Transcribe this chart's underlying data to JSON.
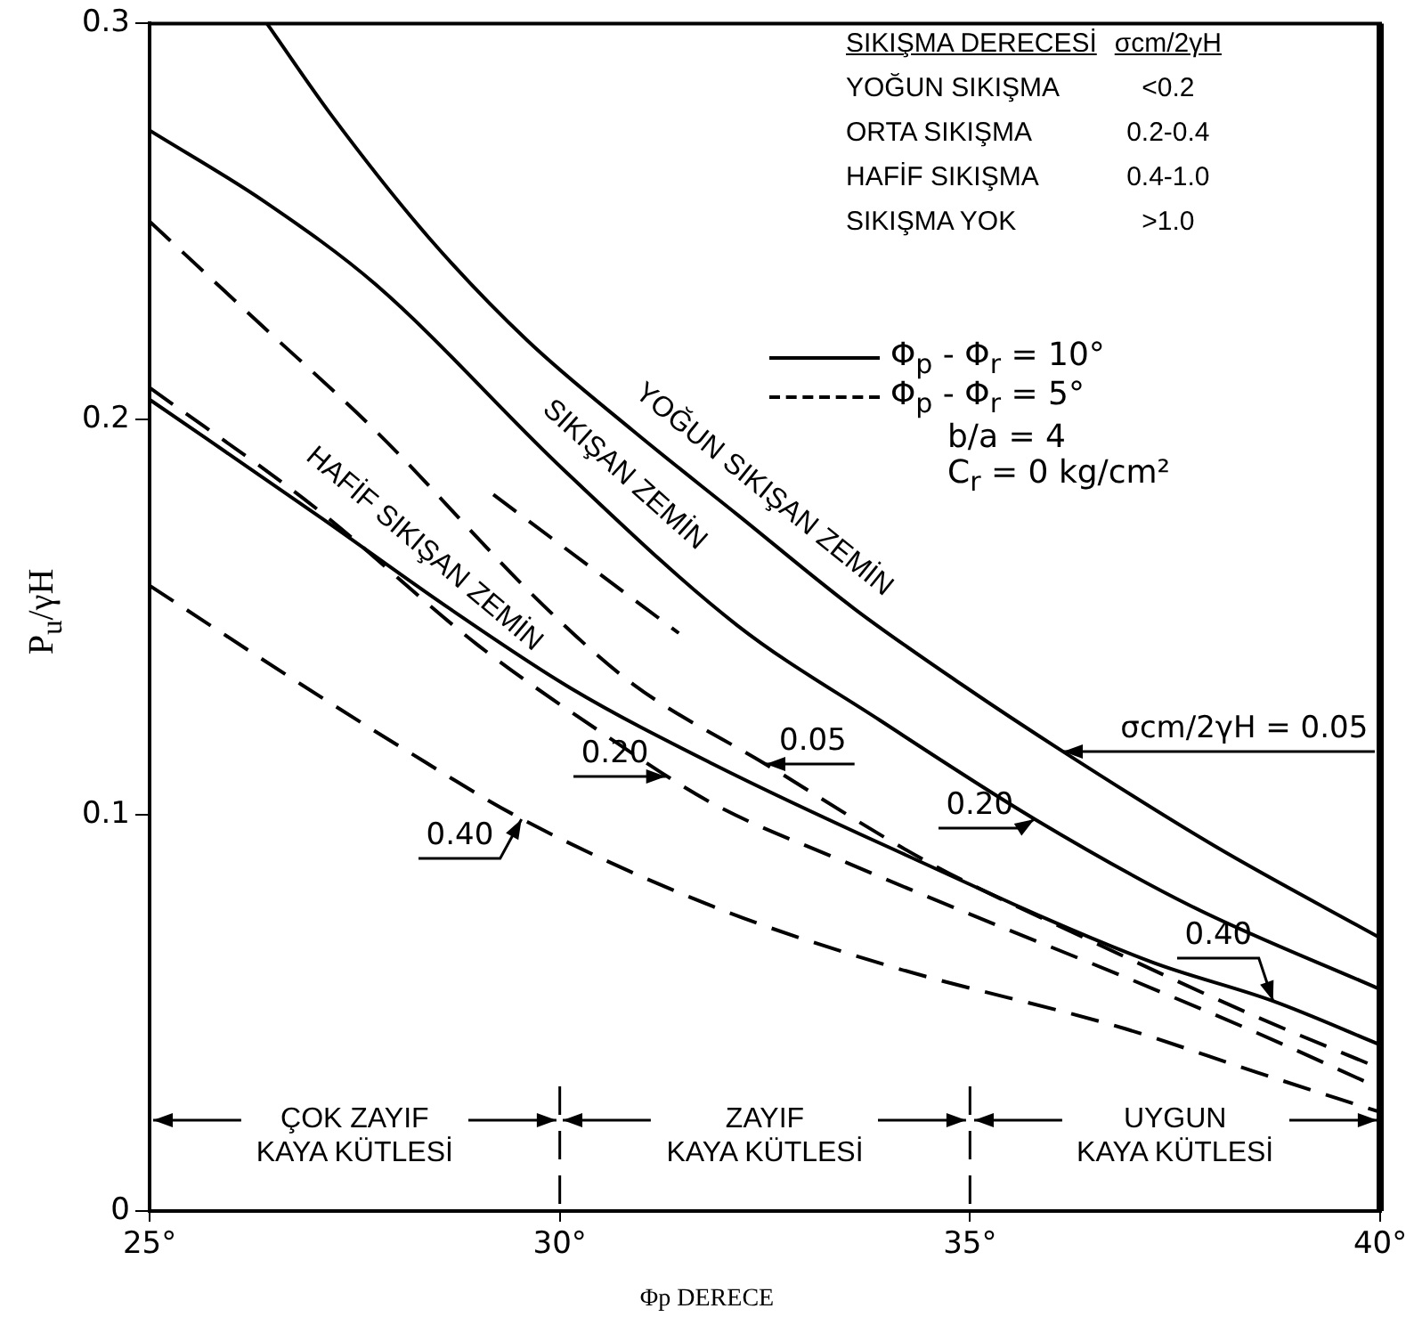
{
  "chart_data": {
    "type": "line",
    "xlabel": "Φp DERECE",
    "ylabel": "P$_{u}$/γH",
    "xlim": [
      25,
      40
    ],
    "xticks": [
      {
        "value": 25,
        "label": "25°"
      },
      {
        "value": 30,
        "label": "30°"
      },
      {
        "value": 35,
        "label": "35°"
      },
      {
        "value": 40,
        "label": "40°"
      }
    ],
    "ylim": [
      0,
      0.3
    ],
    "yticks": [
      0,
      0.1,
      0.2,
      0.3
    ],
    "grid": false,
    "marker": "none",
    "series": [
      {
        "color": "#000000",
        "line_style": "solid",
        "x": [
          26.43,
          27.21,
          28.4,
          29.6,
          30.9,
          32.16,
          33.6,
          34.9,
          36.14,
          38,
          40
        ],
        "values": [
          0.3,
          0.277,
          0.246,
          0.22,
          0.197,
          0.176,
          0.152,
          0.133,
          0.116,
          0.092,
          0.069
        ]
      },
      {
        "color": "#000000",
        "line_style": "solid",
        "x": [
          25,
          26.4,
          27.76,
          30.06,
          32.16,
          33.9,
          35.79,
          37.7,
          40
        ],
        "values": [
          0.273,
          0.255,
          0.234,
          0.187,
          0.148,
          0.124,
          0.099,
          0.077,
          0.056
        ]
      },
      {
        "color": "#000000",
        "line_style": "solid",
        "x": [
          25,
          27.1,
          28.6,
          30.14,
          31.86,
          34,
          37.2,
          38.7,
          40
        ],
        "values": [
          0.205,
          0.175,
          0.153,
          0.132,
          0.113,
          0.092,
          0.063,
          0.053,
          0.042
        ]
      },
      {
        "color": "#000000",
        "line_style": "dashed",
        "x": [
          25,
          26.3,
          27.76,
          29.8,
          30.9,
          32.5,
          34.5,
          36.5,
          38.5,
          40
        ],
        "values": [
          0.25,
          0.225,
          0.197,
          0.153,
          0.133,
          0.113,
          0.088,
          0.068,
          0.049,
          0.036
        ]
      },
      {
        "color": "#000000",
        "line_style": "dashed",
        "x": [
          25,
          27,
          29,
          30.5,
          31.86,
          33.5,
          35,
          36.9,
          38.5,
          40
        ],
        "values": [
          0.208,
          0.178,
          0.143,
          0.121,
          0.103,
          0.088,
          0.075,
          0.059,
          0.045,
          0.031
        ]
      },
      {
        "color": "#000000",
        "line_style": "dashed",
        "x": [
          25,
          26.85,
          28,
          29.54,
          31.86,
          34,
          36.9,
          38.5,
          40
        ],
        "values": [
          0.158,
          0.133,
          0.118,
          0.099,
          0.077,
          0.062,
          0.046,
          0.035,
          0.025
        ]
      },
      {
        "color": "#000000",
        "line_style": "dashed",
        "x": [
          29.19,
          31.45
        ],
        "values": [
          0.181,
          0.146
        ]
      }
    ],
    "ref_lines": [
      {
        "axis": "x",
        "value": 30,
        "line_style": "dashed"
      },
      {
        "axis": "x",
        "value": 35,
        "line_style": "dashed"
      }
    ],
    "annotations": [
      {
        "text": "YOĞUN SIKIŞAN ZEMİN",
        "x": 32.2,
        "y": 0.175
      },
      {
        "text": "SIKIŞAN ZEMİN",
        "x": 30.5,
        "y": 0.179
      },
      {
        "text": "HAFİF SIKIŞAN ZEMİN",
        "x": 28.06,
        "y": 0.16
      },
      {
        "text": "σcm/2γH = 0.05",
        "x": 36.14,
        "y": 0.116
      },
      {
        "text": "0.20",
        "x": 35.79,
        "y": 0.099
      },
      {
        "text": "0.40",
        "x": 38.7,
        "y": 0.053
      },
      {
        "text": "0.05",
        "x": 32.5,
        "y": 0.113
      },
      {
        "text": "0.20",
        "x": 31.3,
        "y": 0.11
      },
      {
        "text": "0.40",
        "x": 29.54,
        "y": 0.099
      },
      {
        "text": "ÇOK ZAYIF\nKAYA KÜTLESİ",
        "x": 30,
        "y": 0.023
      },
      {
        "text": "ZAYIF\nKAYA KÜTLESİ",
        "x": 30,
        "y": 0.023
      },
      {
        "text": "UYGUN\nKAYA KÜTLESİ",
        "x": 40,
        "y": 0.023
      },
      "SIKIŞMA DERECESİ",
      "σcm/2γH",
      "YOĞUN SIKIŞMA",
      "<0.2",
      "ORTA SIKIŞMA",
      "0.2-0.4",
      "HAFİF SIKIŞMA",
      "0.4-1.0",
      "SIKIŞMA YOK",
      ">1.0",
      "Φ$_{p}$ - Φ$_{r}$ = 10°",
      "Φ$_{p}$ - Φ$_{r}$ = 5°",
      "b/a = 4",
      "C$_{r}$ = 0 kg/cm²"
    ]
  }
}
